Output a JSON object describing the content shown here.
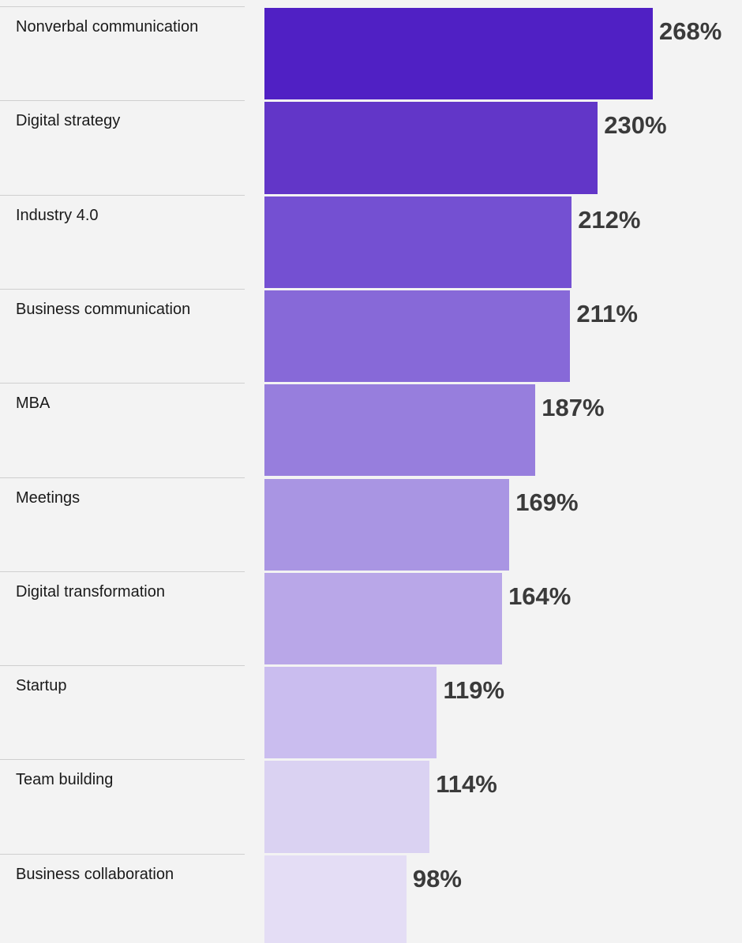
{
  "chart_data": {
    "type": "bar",
    "orientation": "horizontal",
    "categories": [
      "Nonverbal communication",
      "Digital strategy",
      "Industry 4.0",
      "Business communication",
      "MBA",
      "Meetings",
      "Digital transformation",
      "Startup",
      "Team building",
      "Business collaboration"
    ],
    "values": [
      268,
      230,
      212,
      211,
      187,
      169,
      164,
      119,
      114,
      98
    ],
    "value_labels": [
      "268%",
      "230%",
      "212%",
      "211%",
      "187%",
      "169%",
      "164%",
      "119%",
      "114%",
      "98%"
    ],
    "colors": [
      "#5020c4",
      "#6236c8",
      "#7450d2",
      "#8769d8",
      "#977edd",
      "#a995e3",
      "#b9a7e8",
      "#cabdef",
      "#dad2f2",
      "#e4ddf5"
    ]
  }
}
